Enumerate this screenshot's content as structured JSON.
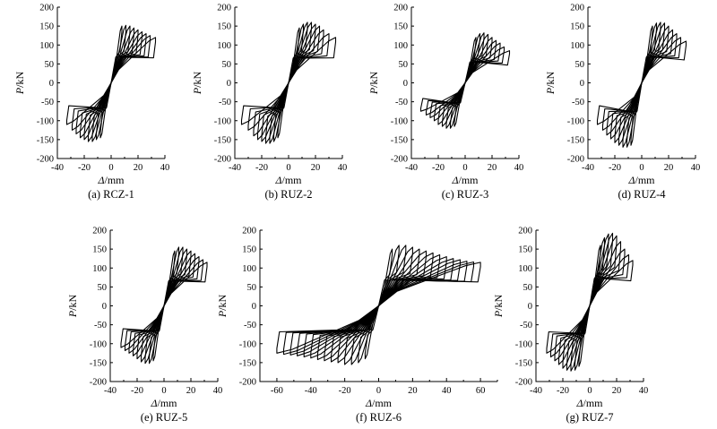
{
  "chart_data": [
    {
      "id": "a",
      "type": "line",
      "caption": "(a) RCZ-1",
      "xlabel_symbol": "Δ",
      "xlabel_unit": "/mm",
      "ylabel_symbol": "P",
      "ylabel_unit": "/kN",
      "xlim": [
        -40,
        40
      ],
      "ylim": [
        -200,
        200
      ],
      "xticks": [
        -40,
        -20,
        0,
        20,
        40
      ],
      "yticks": [
        -200,
        -150,
        -100,
        -50,
        0,
        50,
        100,
        150,
        200
      ],
      "xticks_minor": [
        -30,
        -10,
        10,
        30
      ],
      "loops": [
        {
          "d": 8,
          "p": 150,
          "n": 145
        },
        {
          "d": 11,
          "p": 152,
          "n": 150
        },
        {
          "d": 14,
          "p": 150,
          "n": 155
        },
        {
          "d": 17,
          "p": 145,
          "n": 155
        },
        {
          "d": 20,
          "p": 140,
          "n": 150
        },
        {
          "d": 23,
          "p": 135,
          "n": 145
        },
        {
          "d": 26,
          "p": 130,
          "n": 135
        },
        {
          "d": 29,
          "p": 125,
          "n": 125
        },
        {
          "d": 33,
          "p": 120,
          "n": 110
        }
      ]
    },
    {
      "id": "b",
      "type": "line",
      "caption": "(b) RUZ-2",
      "xlabel_symbol": "Δ",
      "xlabel_unit": "/mm",
      "ylabel_symbol": "P",
      "ylabel_unit": "/kN",
      "xlim": [
        -40,
        40
      ],
      "ylim": [
        -200,
        200
      ],
      "xticks": [
        -40,
        -20,
        0,
        20,
        40
      ],
      "yticks": [
        -200,
        -150,
        -100,
        -50,
        0,
        50,
        100,
        150,
        200
      ],
      "xticks_minor": [
        -30,
        -10,
        10,
        30
      ],
      "loops": [
        {
          "d": 8,
          "p": 145,
          "n": 145
        },
        {
          "d": 11,
          "p": 155,
          "n": 155
        },
        {
          "d": 14,
          "p": 160,
          "n": 160
        },
        {
          "d": 17,
          "p": 160,
          "n": 160
        },
        {
          "d": 20,
          "p": 155,
          "n": 155
        },
        {
          "d": 23,
          "p": 150,
          "n": 150
        },
        {
          "d": 26,
          "p": 140,
          "n": 140
        },
        {
          "d": 30,
          "p": 130,
          "n": 125
        },
        {
          "d": 35,
          "p": 120,
          "n": 110
        }
      ]
    },
    {
      "id": "c",
      "type": "line",
      "caption": "(c) RUZ-3",
      "xlabel_symbol": "Δ",
      "xlabel_unit": "/mm",
      "ylabel_symbol": "P",
      "ylabel_unit": "/kN",
      "xlim": [
        -40,
        40
      ],
      "ylim": [
        -200,
        200
      ],
      "xticks": [
        -40,
        -20,
        0,
        20,
        40
      ],
      "yticks": [
        -200,
        -150,
        -100,
        -50,
        0,
        50,
        100,
        150,
        200
      ],
      "xticks_minor": [
        -30,
        -10,
        10,
        30
      ],
      "loops": [
        {
          "d": 8,
          "p": 120,
          "n": 115
        },
        {
          "d": 11,
          "p": 130,
          "n": 120
        },
        {
          "d": 14,
          "p": 132,
          "n": 120
        },
        {
          "d": 17,
          "p": 128,
          "n": 115
        },
        {
          "d": 20,
          "p": 120,
          "n": 110
        },
        {
          "d": 23,
          "p": 112,
          "n": 100
        },
        {
          "d": 26,
          "p": 105,
          "n": 92
        },
        {
          "d": 29,
          "p": 95,
          "n": 85
        },
        {
          "d": 33,
          "p": 85,
          "n": 75
        }
      ]
    },
    {
      "id": "d",
      "type": "line",
      "caption": "(d) RUZ-4",
      "xlabel_symbol": "Δ",
      "xlabel_unit": "/mm",
      "ylabel_symbol": "P",
      "ylabel_unit": "/kN",
      "xlim": [
        -40,
        40
      ],
      "ylim": [
        -200,
        200
      ],
      "xticks": [
        -40,
        -20,
        0,
        20,
        40
      ],
      "yticks": [
        -200,
        -150,
        -100,
        -50,
        0,
        50,
        100,
        150,
        200
      ],
      "xticks_minor": [
        -30,
        -10,
        10,
        30
      ],
      "loops": [
        {
          "d": 8,
          "p": 150,
          "n": 165
        },
        {
          "d": 11,
          "p": 158,
          "n": 170
        },
        {
          "d": 14,
          "p": 160,
          "n": 170
        },
        {
          "d": 17,
          "p": 158,
          "n": 165
        },
        {
          "d": 20,
          "p": 150,
          "n": 158
        },
        {
          "d": 23,
          "p": 140,
          "n": 148
        },
        {
          "d": 26,
          "p": 130,
          "n": 138
        },
        {
          "d": 29,
          "p": 120,
          "n": 125
        },
        {
          "d": 33,
          "p": 110,
          "n": 110
        }
      ]
    },
    {
      "id": "e",
      "type": "line",
      "caption": "(e) RUZ-5",
      "xlabel_symbol": "Δ",
      "xlabel_unit": "/mm",
      "ylabel_symbol": "P",
      "ylabel_unit": "/kN",
      "xlim": [
        -40,
        40
      ],
      "ylim": [
        -200,
        200
      ],
      "xticks": [
        -40,
        -20,
        0,
        20,
        40
      ],
      "yticks": [
        -200,
        -150,
        -100,
        -50,
        0,
        50,
        100,
        150,
        200
      ],
      "xticks_minor": [
        -30,
        -10,
        10,
        30
      ],
      "loops": [
        {
          "d": 8,
          "p": 145,
          "n": 145
        },
        {
          "d": 11,
          "p": 155,
          "n": 152
        },
        {
          "d": 14,
          "p": 155,
          "n": 152
        },
        {
          "d": 17,
          "p": 150,
          "n": 148
        },
        {
          "d": 20,
          "p": 145,
          "n": 140
        },
        {
          "d": 23,
          "p": 138,
          "n": 132
        },
        {
          "d": 26,
          "p": 130,
          "n": 125
        },
        {
          "d": 29,
          "p": 122,
          "n": 118
        },
        {
          "d": 32,
          "p": 115,
          "n": 110
        }
      ]
    },
    {
      "id": "f",
      "type": "line",
      "caption": "(f) RUZ-6",
      "xlabel_symbol": "Δ",
      "xlabel_unit": "/mm",
      "ylabel_symbol": "P",
      "ylabel_unit": "/kN",
      "xlim": [
        -70,
        70
      ],
      "ylim": [
        -200,
        200
      ],
      "xticks": [
        -60,
        -40,
        -20,
        0,
        20,
        40,
        60
      ],
      "yticks": [
        -200,
        -150,
        -100,
        -50,
        0,
        50,
        100,
        150,
        200
      ],
      "xticks_minor": [
        -70,
        -50,
        -30,
        -10,
        10,
        30,
        50,
        70
      ],
      "loops": [
        {
          "d": 8,
          "p": 150,
          "n": 140
        },
        {
          "d": 12,
          "p": 160,
          "n": 150
        },
        {
          "d": 16,
          "p": 160,
          "n": 155
        },
        {
          "d": 20,
          "p": 155,
          "n": 155
        },
        {
          "d": 24,
          "p": 150,
          "n": 150
        },
        {
          "d": 28,
          "p": 145,
          "n": 148
        },
        {
          "d": 32,
          "p": 140,
          "n": 145
        },
        {
          "d": 36,
          "p": 135,
          "n": 142
        },
        {
          "d": 40,
          "p": 130,
          "n": 138
        },
        {
          "d": 44,
          "p": 125,
          "n": 135
        },
        {
          "d": 48,
          "p": 122,
          "n": 132
        },
        {
          "d": 52,
          "p": 118,
          "n": 130
        },
        {
          "d": 56,
          "p": 116,
          "n": 128
        },
        {
          "d": 60,
          "p": 115,
          "n": 125
        }
      ]
    },
    {
      "id": "g",
      "type": "line",
      "caption": "(g) RUZ-7",
      "xlabel_symbol": "Δ",
      "xlabel_unit": "/mm",
      "ylabel_symbol": "P",
      "ylabel_unit": "/kN",
      "xlim": [
        -40,
        40
      ],
      "ylim": [
        -200,
        200
      ],
      "xticks": [
        -40,
        -20,
        0,
        20,
        40
      ],
      "yticks": [
        -200,
        -150,
        -100,
        -50,
        0,
        50,
        100,
        150,
        200
      ],
      "xticks_minor": [
        -30,
        -10,
        10,
        30
      ],
      "loops": [
        {
          "d": 8,
          "p": 160,
          "n": 160
        },
        {
          "d": 11,
          "p": 180,
          "n": 170
        },
        {
          "d": 14,
          "p": 190,
          "n": 172
        },
        {
          "d": 17,
          "p": 192,
          "n": 170
        },
        {
          "d": 20,
          "p": 185,
          "n": 165
        },
        {
          "d": 23,
          "p": 170,
          "n": 155
        },
        {
          "d": 26,
          "p": 150,
          "n": 145
        },
        {
          "d": 29,
          "p": 135,
          "n": 135
        },
        {
          "d": 32,
          "p": 120,
          "n": 125
        }
      ]
    }
  ]
}
